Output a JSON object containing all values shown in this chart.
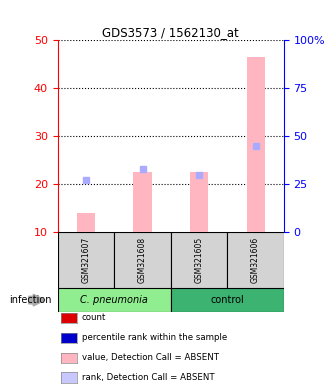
{
  "title": "GDS3573 / 1562130_at",
  "samples": [
    "GSM321607",
    "GSM321608",
    "GSM321605",
    "GSM321606"
  ],
  "groups": [
    "C. pneumonia",
    "C. pneumonia",
    "control",
    "control"
  ],
  "group_labels": [
    "C. pneumonia",
    "control"
  ],
  "group_colors": [
    "#90ee90",
    "#3cb371"
  ],
  "bar_values": [
    14.0,
    22.5,
    22.5,
    46.5
  ],
  "rank_values": [
    20.8,
    23.2,
    22.0,
    28.0
  ],
  "ylim_left": [
    10,
    50
  ],
  "ylim_right": [
    0,
    100
  ],
  "yticks_left": [
    10,
    20,
    30,
    40,
    50
  ],
  "yticks_right": [
    0,
    25,
    50,
    75,
    100
  ],
  "yticklabels_right": [
    "0",
    "25",
    "50",
    "75",
    "100%"
  ],
  "bar_color": "#ffb6c1",
  "rank_color": "#aaaaff",
  "legend_items": [
    {
      "label": "count",
      "color": "#dd0000"
    },
    {
      "label": "percentile rank within the sample",
      "color": "#0000cc"
    },
    {
      "label": "value, Detection Call = ABSENT",
      "color": "#ffb6c1"
    },
    {
      "label": "rank, Detection Call = ABSENT",
      "color": "#c8c8ff"
    }
  ],
  "infection_label": "infection",
  "bar_bottom": 10,
  "background_color": "#ffffff",
  "sample_box_color": "#d3d3d3"
}
